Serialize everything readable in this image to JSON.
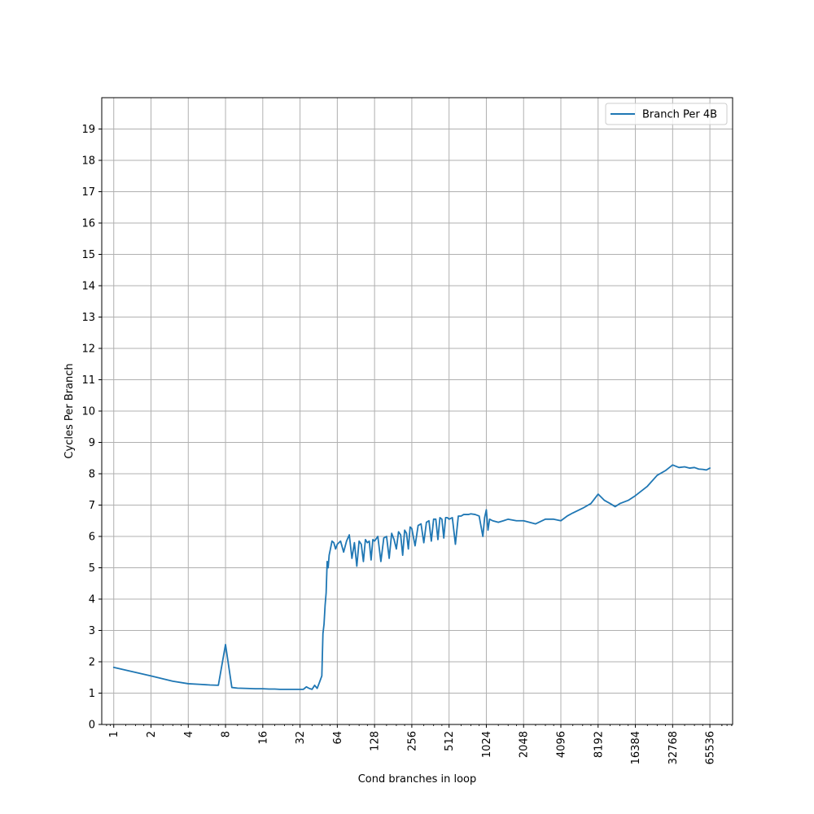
{
  "chart_data": {
    "type": "line",
    "title": "",
    "xlabel": "Cond branches in loop",
    "ylabel": "Cycles Per Branch",
    "xscale": "log2",
    "xlim": [
      0.8,
      100000
    ],
    "ylim": [
      0,
      20
    ],
    "grid": true,
    "legend_position": "top-right",
    "x_ticks": [
      1,
      2,
      4,
      8,
      16,
      32,
      64,
      128,
      256,
      512,
      1024,
      2048,
      4096,
      8192,
      16384,
      32768,
      65536
    ],
    "x_tick_labels": [
      "1",
      "2",
      "4",
      "8",
      "16",
      "32",
      "64",
      "128",
      "256",
      "512",
      "1024",
      "2048",
      "4096",
      "8192",
      "16384",
      "32768",
      "65536"
    ],
    "y_ticks": [
      0,
      1,
      2,
      3,
      4,
      5,
      6,
      7,
      8,
      9,
      10,
      11,
      12,
      13,
      14,
      15,
      16,
      17,
      18,
      19
    ],
    "y_tick_labels": [
      "0",
      "1",
      "2",
      "3",
      "4",
      "5",
      "6",
      "7",
      "8",
      "9",
      "10",
      "11",
      "12",
      "13",
      "14",
      "15",
      "16",
      "17",
      "18",
      "19"
    ],
    "series": [
      {
        "name": "Branch Per 4B",
        "color": "#1f77b4",
        "x": [
          1,
          2,
          3,
          4,
          5,
          6,
          7,
          8,
          9,
          10,
          12,
          14,
          16,
          18,
          20,
          22,
          24,
          28,
          32,
          34,
          36,
          38,
          40,
          42,
          44,
          46,
          48,
          49,
          50,
          51,
          52,
          53,
          54,
          55,
          56,
          58,
          60,
          62,
          64,
          68,
          72,
          76,
          80,
          84,
          88,
          92,
          96,
          100,
          104,
          108,
          112,
          116,
          120,
          124,
          128,
          136,
          144,
          152,
          160,
          168,
          176,
          184,
          192,
          200,
          208,
          216,
          224,
          232,
          240,
          248,
          256,
          272,
          288,
          304,
          320,
          336,
          352,
          368,
          384,
          400,
          416,
          432,
          448,
          464,
          480,
          496,
          512,
          544,
          576,
          608,
          640,
          672,
          704,
          736,
          768,
          832,
          896,
          960,
          992,
          1024,
          1056,
          1088,
          1152,
          1280,
          1408,
          1536,
          1792,
          2048,
          2560,
          3072,
          3584,
          4096,
          4608,
          5120,
          6144,
          7168,
          8192,
          9216,
          10240,
          11264,
          12288,
          14336,
          16384,
          20480,
          24576,
          28672,
          32768,
          36864,
          40960,
          45056,
          49152,
          53248,
          57344,
          61440,
          65536
        ],
        "y": [
          1.82,
          1.55,
          1.38,
          1.3,
          1.28,
          1.26,
          1.25,
          2.55,
          1.18,
          1.16,
          1.15,
          1.14,
          1.14,
          1.13,
          1.13,
          1.12,
          1.12,
          1.12,
          1.12,
          1.12,
          1.2,
          1.15,
          1.12,
          1.25,
          1.15,
          1.35,
          1.55,
          2.9,
          3.2,
          3.8,
          4.2,
          5.2,
          5.0,
          5.4,
          5.55,
          5.85,
          5.8,
          5.6,
          5.75,
          5.85,
          5.5,
          5.85,
          6.05,
          5.3,
          5.8,
          5.05,
          5.85,
          5.75,
          5.2,
          5.9,
          5.8,
          5.85,
          5.25,
          5.9,
          5.85,
          6.0,
          5.2,
          5.95,
          6.0,
          5.3,
          6.1,
          5.9,
          5.6,
          6.15,
          6.05,
          5.4,
          6.2,
          6.1,
          5.6,
          6.3,
          6.25,
          5.7,
          6.35,
          6.4,
          5.8,
          6.45,
          6.5,
          5.85,
          6.55,
          6.55,
          5.9,
          6.6,
          6.55,
          5.95,
          6.6,
          6.6,
          6.55,
          6.6,
          5.75,
          6.65,
          6.65,
          6.7,
          6.7,
          6.7,
          6.72,
          6.7,
          6.65,
          6.0,
          6.6,
          6.85,
          6.2,
          6.55,
          6.5,
          6.45,
          6.5,
          6.55,
          6.5,
          6.5,
          6.4,
          6.55,
          6.55,
          6.5,
          6.65,
          6.75,
          6.9,
          7.05,
          7.35,
          7.15,
          7.05,
          6.95,
          7.05,
          7.15,
          7.3,
          7.6,
          7.95,
          8.1,
          8.28,
          8.2,
          8.22,
          8.18,
          8.2,
          8.15,
          8.14,
          8.12,
          8.18
        ]
      }
    ]
  }
}
